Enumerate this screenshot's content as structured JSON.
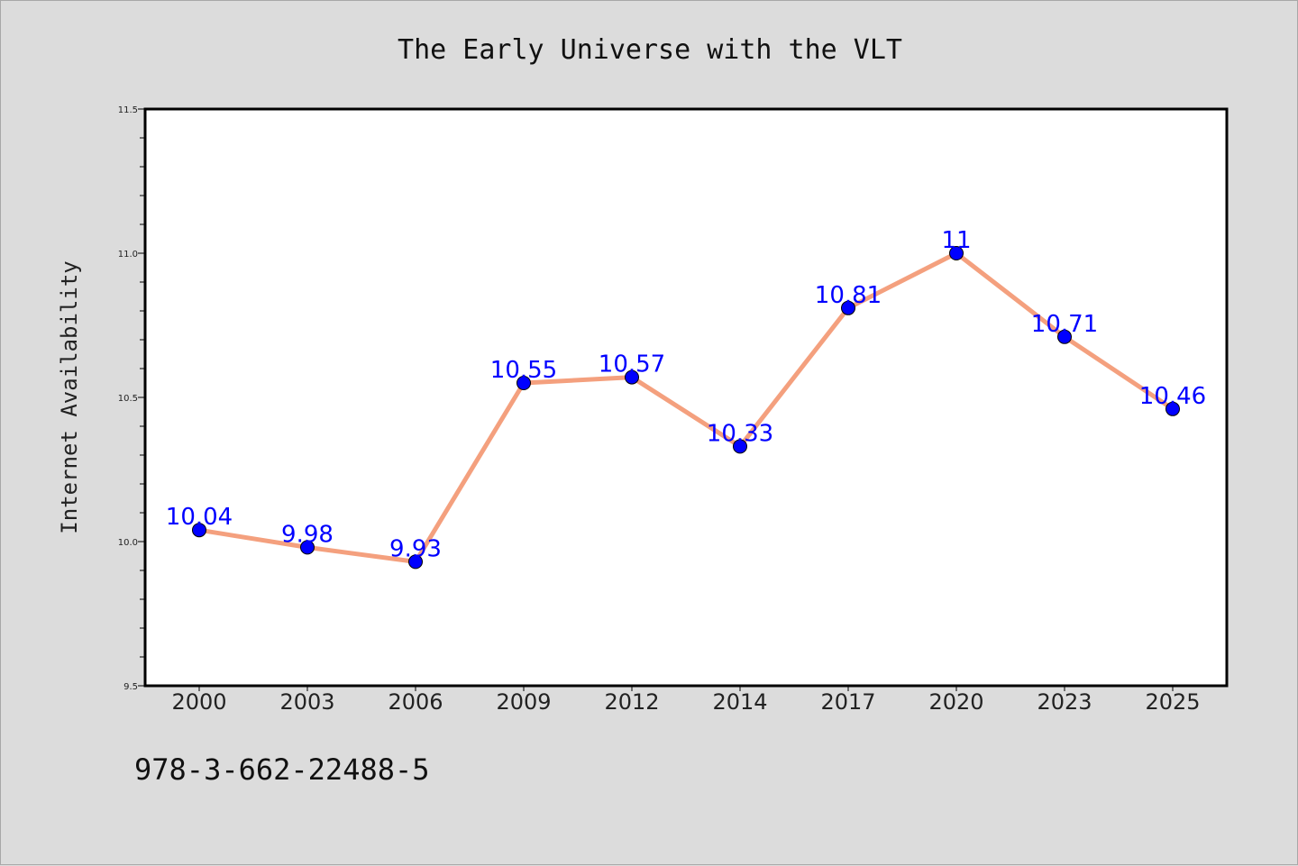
{
  "chart_data": {
    "type": "line",
    "title": "The Early Universe with the VLT",
    "xlabel": "",
    "ylabel": "Internet Availability",
    "categories": [
      "2000",
      "2003",
      "2006",
      "2009",
      "2012",
      "2014",
      "2017",
      "2020",
      "2023",
      "2025"
    ],
    "values": [
      10.04,
      9.98,
      9.93,
      10.55,
      10.57,
      10.33,
      10.81,
      11,
      10.71,
      10.46
    ],
    "data_labels": [
      "10.04",
      "9.98",
      "9.93",
      "10.55",
      "10.57",
      "10.33",
      "10.81",
      "11",
      "10.71",
      "10.46"
    ],
    "ylim": [
      9.5,
      11.5
    ],
    "yticks": [
      "9.5",
      "10.0",
      "10.5",
      "11.0",
      "11.5"
    ],
    "grid": false,
    "line_color": "#f4a07e",
    "marker_color": "#0000ff",
    "label_color": "#0000ff"
  },
  "footer": {
    "text": "978-3-662-22488-5"
  }
}
